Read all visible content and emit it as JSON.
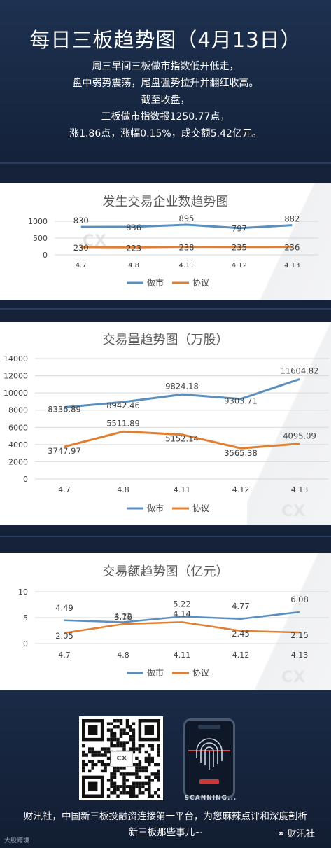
{
  "header": {
    "title": "每日三板趋势图（4月13日）",
    "lines": [
      "周三早间三板做市指数低开低走，",
      "盘中弱势震荡，尾盘强势拉升并翻红收高。",
      "截至收盘，",
      "三板做市指数报1250.77点，",
      "涨1.86点，涨幅0.15%，成交额5.42亿元。"
    ]
  },
  "chart_data": [
    {
      "type": "line",
      "title": "发生交易企业数趋势图",
      "categories": [
        "4.7",
        "4.8",
        "4.11",
        "4.12",
        "4.13"
      ],
      "yticks": [
        0,
        500,
        1000
      ],
      "ylim": [
        0,
        1000
      ],
      "series": [
        {
          "name": "做市",
          "color": "#5b8fbf",
          "values": [
            830,
            836,
            895,
            797,
            882
          ],
          "labels": [
            "830",
            "836",
            "895",
            "797",
            "882"
          ]
        },
        {
          "name": "协议",
          "color": "#e07e32",
          "values": [
            230,
            223,
            238,
            235,
            236
          ],
          "labels": [
            "230",
            "223",
            "238",
            "235",
            "236"
          ]
        }
      ],
      "legend": "bottom"
    },
    {
      "type": "line",
      "title": "交易量趋势图（万股）",
      "categories": [
        "4.7",
        "4.8",
        "4.11",
        "4.12",
        "4.13"
      ],
      "yticks": [
        0,
        2000,
        4000,
        6000,
        8000,
        10000,
        12000,
        14000
      ],
      "ylim": [
        0,
        14000
      ],
      "series": [
        {
          "name": "做市",
          "color": "#5b8fbf",
          "values": [
            8336.89,
            8942.46,
            9824.18,
            9303.71,
            11604.82
          ],
          "labels": [
            "8336.89",
            "8942.46",
            "9824.18",
            "9303.71",
            "11604.82"
          ]
        },
        {
          "name": "协议",
          "color": "#e07e32",
          "values": [
            3747.97,
            5511.89,
            5152.14,
            3565.38,
            4095.09
          ],
          "labels": [
            "3747.97",
            "5511.89",
            "5152.14",
            "3565.38",
            "4095.09"
          ]
        }
      ],
      "legend": "bottom"
    },
    {
      "type": "line",
      "title": "交易额趋势图（亿元）",
      "categories": [
        "4.7",
        "4.8",
        "4.11",
        "4.12",
        "4.13"
      ],
      "yticks": [
        0,
        5,
        10
      ],
      "ylim": [
        0,
        10
      ],
      "series": [
        {
          "name": "做市",
          "color": "#5b8fbf",
          "values": [
            4.49,
            4.12,
            5.22,
            4.77,
            6.08
          ],
          "labels": [
            "4.49",
            "4.12",
            "5.22",
            "4.77",
            "6.08"
          ]
        },
        {
          "name": "协议",
          "color": "#e07e32",
          "values": [
            2.05,
            3.76,
            4.14,
            2.45,
            2.15
          ],
          "labels": [
            "2.05",
            "3.76",
            "4.14",
            "2.45",
            "2.15"
          ]
        }
      ],
      "legend": "bottom"
    }
  ],
  "watermark": "CX",
  "scanner": {
    "label": "SCANNING..."
  },
  "footer": {
    "line1": "财汛社，中国新三板投融资连接第一平台，为您麻辣点评和深度剖析",
    "line2": "新三板那些事儿~",
    "credit_left": "大股跨境",
    "credit_right": "财汛社"
  }
}
